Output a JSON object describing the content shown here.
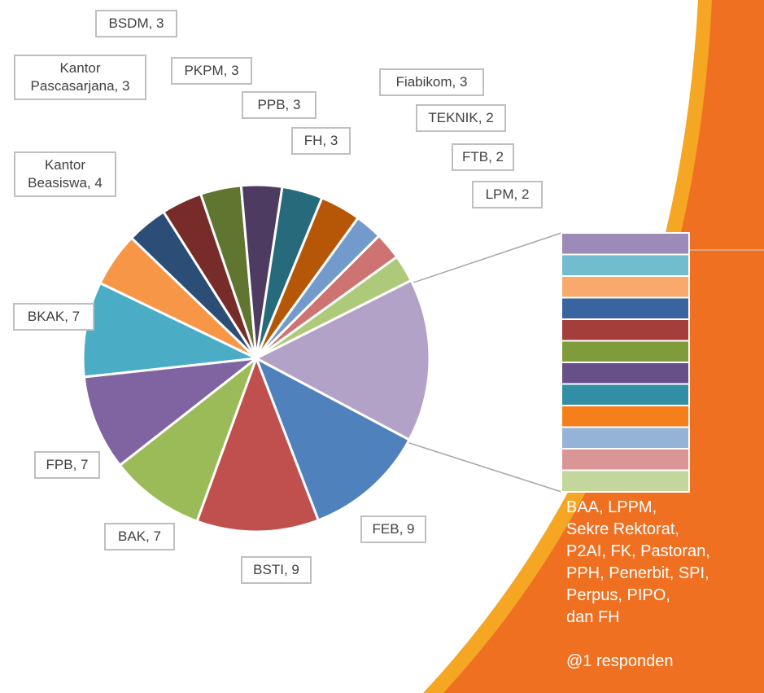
{
  "chart_data": {
    "type": "pie",
    "categories": [
      "FEB",
      "BSTI",
      "BAK",
      "FPB",
      "BKAK",
      "Kantor Beasiswa",
      "Kantor Pascasarjana",
      "BSDM",
      "PKPM",
      "PPB",
      "FH",
      "Fiabikom",
      "TEKNIK",
      "FTB",
      "LPM",
      null
    ],
    "values": [
      9,
      9,
      7,
      7,
      7,
      4,
      3,
      3,
      3,
      3,
      3,
      3,
      2,
      2,
      2,
      12
    ],
    "value_labels": [
      "FEB, 9",
      "BSTI, 9",
      "BAK, 7",
      "FPB, 7",
      "BKAK, 7",
      "Kantor\nBeasiswa, 4",
      "Kantor\nPascasarjana, 3",
      "BSDM, 3",
      "PKPM, 3",
      "PPB, 3",
      "FH, 3",
      "Fiabikom, 3",
      "TEKNIK, 2",
      "FTB, 2",
      "LPM, 2",
      null
    ],
    "colors": [
      "#4f81bd",
      "#c0504d",
      "#9bbb59",
      "#8064a2",
      "#4bacc6",
      "#f79646",
      "#2c4d75",
      "#772c2a",
      "#5f7530",
      "#4d3b62",
      "#276a7c",
      "#b65708",
      "#729aca",
      "#cd7371",
      "#afc97a",
      "#b3a2c7"
    ],
    "bar": {
      "values": [
        1,
        1,
        1,
        1,
        1,
        1,
        1,
        1,
        1,
        1,
        1,
        1
      ],
      "colors": [
        "#9c8ab8",
        "#72bcd0",
        "#f9a96d",
        "#3a64a0",
        "#a33e3b",
        "#7f9c3d",
        "#674f88",
        "#318ea4",
        "#f47f1b",
        "#95b3d7",
        "#d99694",
        "#c3d69b"
      ],
      "label": "BAA, LPPM,\nSekre Rektorat,\nP2AI, FK, Pastoran,\nPPH, Penerbit, SPI,\nPerpus, PIPO,\ndan FH",
      "note": "@1 responden"
    }
  }
}
